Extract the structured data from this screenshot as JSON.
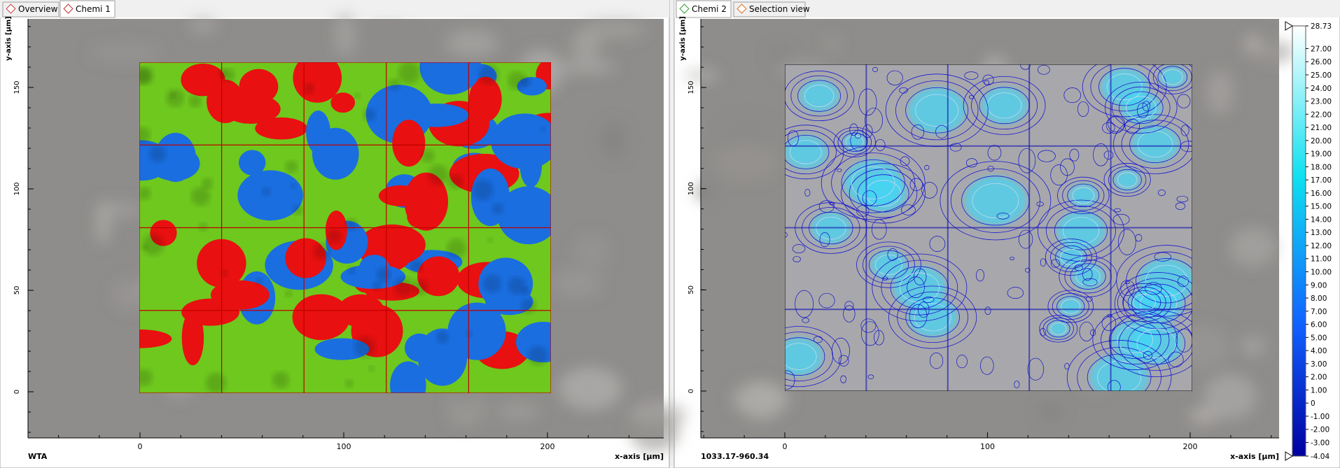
{
  "left_panel": {
    "tabs": [
      "Overview",
      "Chemi 1"
    ],
    "y_axis_label": "y-axis [µm]",
    "x_axis_label": "x-axis [µm]",
    "xticks": [
      0,
      100,
      200
    ],
    "yticks": [
      0,
      50,
      100,
      150
    ],
    "footer": "WTA"
  },
  "right_panel": {
    "tabs": [
      "Chemi 2",
      "Selection view"
    ],
    "y_axis_label": "y-axis [µm]",
    "x_axis_label": "x-axis [µm]",
    "xticks": [
      0,
      100,
      200
    ],
    "yticks": [
      0,
      50,
      100,
      150
    ],
    "footer": "1033.17-960.34",
    "colorbar_labels": [
      "28.73",
      "27.00",
      "26.00",
      "25.00",
      "24.00",
      "23.00",
      "22.00",
      "21.00",
      "20.00",
      "19.00",
      "18.00",
      "17.00",
      "16.00",
      "15.00",
      "14.00",
      "13.00",
      "12.00",
      "11.00",
      "10.00",
      "9.00",
      "8.00",
      "7.00",
      "6.00",
      "5.00",
      "4.00",
      "3.00",
      "2.00",
      "1.00",
      "0",
      "-1.00",
      "-2.00",
      "-3.00",
      "-4.04"
    ]
  }
}
